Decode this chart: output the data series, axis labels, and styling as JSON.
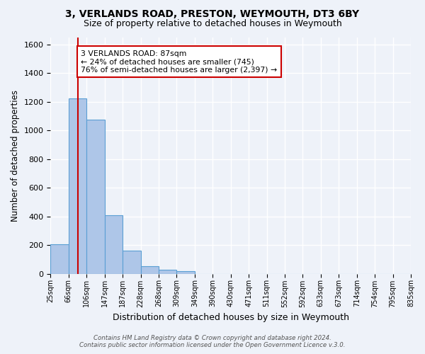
{
  "title": "3, VERLANDS ROAD, PRESTON, WEYMOUTH, DT3 6BY",
  "subtitle": "Size of property relative to detached houses in Weymouth",
  "xlabel": "Distribution of detached houses by size in Weymouth",
  "ylabel": "Number of detached properties",
  "bin_edges": [
    "25sqm",
    "66sqm",
    "106sqm",
    "147sqm",
    "187sqm",
    "228sqm",
    "268sqm",
    "309sqm",
    "349sqm",
    "390sqm",
    "430sqm",
    "471sqm",
    "511sqm",
    "552sqm",
    "592sqm",
    "633sqm",
    "673sqm",
    "714sqm",
    "754sqm",
    "795sqm",
    "835sqm"
  ],
  "bar_values": [
    205,
    1225,
    1075,
    410,
    160,
    50,
    25,
    15,
    0,
    0,
    0,
    0,
    0,
    0,
    0,
    0,
    0,
    0,
    0,
    0
  ],
  "bar_color": "#aec6e8",
  "bar_edge_color": "#5a9fd4",
  "annotation_line1": "3 VERLANDS ROAD: 87sqm",
  "annotation_line2": "← 24% of detached houses are smaller (745)",
  "annotation_line3": "76% of semi-detached houses are larger (2,397) →",
  "annotation_box_color": "#ffffff",
  "annotation_box_edge": "#cc0000",
  "vline_color": "#cc0000",
  "vline_position": 1.525,
  "ylim": [
    0,
    1650
  ],
  "yticks": [
    0,
    200,
    400,
    600,
    800,
    1000,
    1200,
    1400,
    1600
  ],
  "footer_line1": "Contains HM Land Registry data © Crown copyright and database right 2024.",
  "footer_line2": "Contains public sector information licensed under the Open Government Licence v.3.0.",
  "bg_color": "#eef2f9",
  "plot_bg_color": "#eef2f9",
  "grid_color": "#ffffff"
}
